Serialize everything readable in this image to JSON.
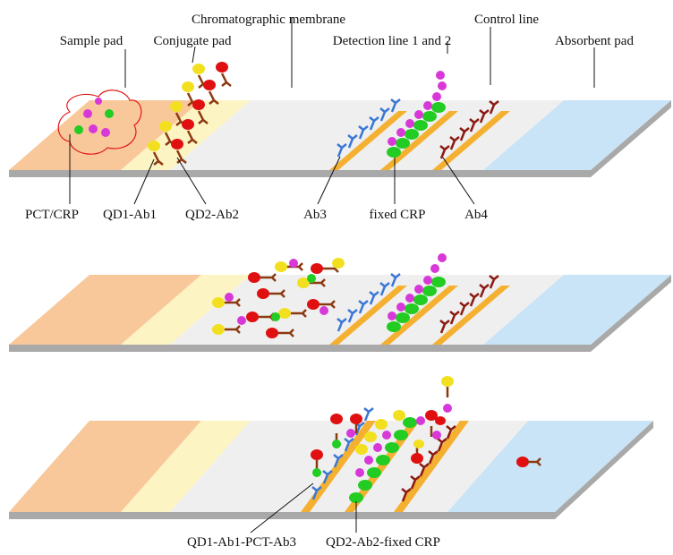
{
  "labels": {
    "chromatographic_membrane": "Chromatographic membrane",
    "control_line": "Control line",
    "sample_pad": "Sample pad",
    "conjugate_pad": "Conjugate pad",
    "detection_line": "Detection line 1 and 2",
    "absorbent_pad": "Absorbent pad",
    "pct_crp": "PCT/CRP",
    "qd1_ab1": "QD1-Ab1",
    "qd2_ab2": "QD2-Ab2",
    "ab3": "Ab3",
    "fixed_crp": "fixed CRP",
    "ab4": "Ab4",
    "qd1_complex": "QD1-Ab1-PCT-Ab3",
    "qd2_complex": "QD2-Ab2-fixed CRP"
  },
  "colors": {
    "sample_pad": "#f8c89a",
    "conjugate_pad": "#fdf4c4",
    "membrane": "#efefef",
    "absorbent_pad": "#c9e4f6",
    "test_line": "#f4b030",
    "ab3": "#3a78d6",
    "ab4": "#8b1a12",
    "ab1_ab2": "#8b3a10",
    "qd1": "#f2e020",
    "qd2": "#e01010",
    "pct": "#d838d8",
    "crp": "#22cc22",
    "base": "#a9a9a9"
  },
  "panels": [
    "strip-before-sample",
    "strip-during-flow",
    "strip-after-capture"
  ]
}
